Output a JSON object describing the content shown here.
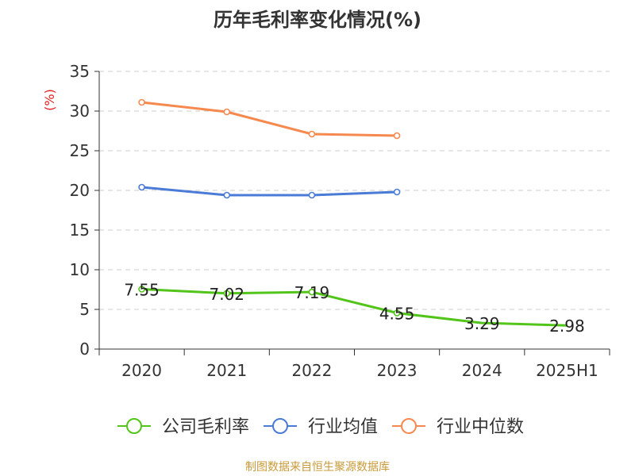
{
  "chart_data": {
    "type": "line",
    "title": "历年毛利率变化情况(%)",
    "ylabel": "(%)",
    "xlabel": "",
    "categories": [
      "2020",
      "2021",
      "2022",
      "2023",
      "2024",
      "2025H1"
    ],
    "ylim": [
      0,
      35
    ],
    "yticks": [
      "0",
      "5",
      "10",
      "15",
      "20",
      "25",
      "30",
      "35"
    ],
    "grid": true,
    "legend_position": "bottom",
    "series": [
      {
        "name": "公司毛利率",
        "color": "#52c41a",
        "values": [
          7.55,
          7.02,
          7.19,
          4.55,
          3.29,
          2.98
        ],
        "labels": [
          "7.55",
          "7.02",
          "7.19",
          "4.55",
          "3.29",
          "2.98"
        ],
        "show_markers": [
          true,
          true,
          true,
          true,
          false,
          false
        ]
      },
      {
        "name": "行业均值",
        "color": "#4a7bd6",
        "values": [
          20.4,
          19.4,
          19.4,
          19.8,
          null,
          null
        ],
        "show_markers": [
          true,
          true,
          true,
          true,
          false,
          false
        ]
      },
      {
        "name": "行业中位数",
        "color": "#f5894f",
        "values": [
          31.1,
          29.9,
          27.1,
          26.9,
          null,
          null
        ],
        "show_markers": [
          true,
          true,
          true,
          true,
          false,
          false
        ]
      }
    ]
  },
  "source": "制图数据来自恒生聚源数据库"
}
